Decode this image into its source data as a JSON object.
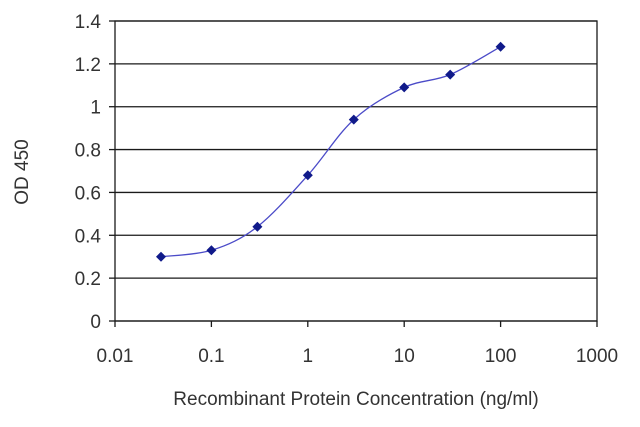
{
  "chart_data": {
    "type": "line",
    "title": "",
    "xlabel": "Recombinant Protein Concentration (ng/ml)",
    "ylabel": "OD 450",
    "x_scale": "log",
    "xlim": [
      0.01,
      1000
    ],
    "ylim": [
      0,
      1.4
    ],
    "x_ticks": [
      "0.01",
      "0.1",
      "1",
      "10",
      "100",
      "1000"
    ],
    "y_ticks": [
      "0",
      "0.2",
      "0.4",
      "0.6",
      "0.8",
      "1",
      "1.2",
      "1.4"
    ],
    "grid": "horizontal",
    "legend": "none",
    "series": [
      {
        "x": [
          0.03,
          0.1,
          0.3,
          1,
          3,
          10,
          30,
          100
        ],
        "y": [
          0.3,
          0.33,
          0.44,
          0.68,
          0.94,
          1.09,
          1.15,
          1.28
        ]
      }
    ],
    "colors": {
      "line": "#4b4bc8",
      "marker": "#101a8a",
      "grid": "#1a1a1a",
      "text": "#333333"
    }
  }
}
